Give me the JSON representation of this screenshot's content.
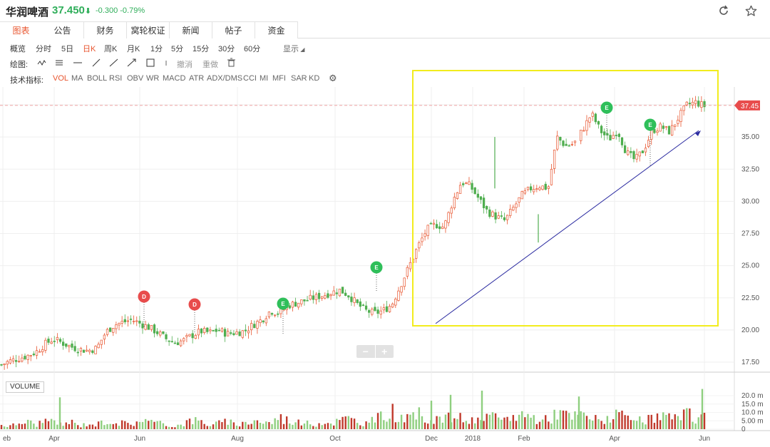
{
  "header": {
    "name": "华润啤酒",
    "price": "37.450",
    "price_arrow": "⬇",
    "change": "-0.300 -0.79%",
    "refresh_icon": "refresh-icon",
    "star_icon": "star-icon"
  },
  "tabs": [
    {
      "label": "图表"
    },
    {
      "label": "公告"
    },
    {
      "label": "财务"
    },
    {
      "label": "窝轮权证"
    },
    {
      "label": "新闻"
    },
    {
      "label": "帖子"
    },
    {
      "label": "资金"
    }
  ],
  "period_bar": {
    "label": "概览",
    "items": [
      "分时",
      "5日",
      "日K",
      "周K",
      "月K",
      "1分",
      "5分",
      "15分",
      "30分",
      "60分"
    ],
    "active": "日K",
    "display": "显示"
  },
  "draw_bar": {
    "label": "绘图:",
    "undo": "撤消",
    "redo": "重做"
  },
  "indicator_bar": {
    "label": "技术指标:",
    "items": [
      "VOL",
      "MA",
      "BOLL",
      "RSI",
      "OBV",
      "WR",
      "MACD",
      "ATR",
      "ADX/DMS",
      "CCI",
      "MI",
      "MFI",
      "SAR",
      "KD"
    ],
    "active": "VOL"
  },
  "volume_label": "VOLUME",
  "zoom": {
    "minus": "−",
    "plus": "+"
  },
  "colors": {
    "up": "#e8552f",
    "down": "#4fae4f",
    "event_e": "#2fbf5a",
    "event_d": "#e84c4c",
    "box": "#f2ec1e",
    "trend": "#2a2aa0"
  },
  "chart_data": {
    "type": "candlestick",
    "current_price": "37.45",
    "price_ticks": [
      "37.50",
      "35.00",
      "32.50",
      "30.00",
      "27.50",
      "25.00",
      "22.50",
      "20.00",
      "17.50"
    ],
    "volume_ticks": [
      "20.0 m",
      "15.0 m",
      "10.0 m",
      "5.00 m",
      "0"
    ],
    "x_ticks": [
      "eb",
      "Apr",
      "Jun",
      "Aug",
      "Oct",
      "Dec",
      "2018",
      "Feb",
      "Apr",
      "Jun"
    ],
    "events": [
      {
        "type": "D",
        "date_label": "Jun",
        "price": 20.5
      },
      {
        "type": "D",
        "date_label": "Jul",
        "price": 19.9
      },
      {
        "type": "E",
        "date_label": "Aug",
        "price": 19.9
      },
      {
        "type": "E",
        "date_label": "Nov",
        "price": 22.6
      },
      {
        "type": "E",
        "date_label": "Mar",
        "price": 34.8
      },
      {
        "type": "E",
        "date_label": "Apr",
        "price": 33.2
      }
    ],
    "trendline": {
      "from_price": 20.5,
      "to_price": 35.5
    },
    "price_path": [
      17.3,
      17.6,
      17.8,
      18.0,
      18.3,
      18.9,
      19.3,
      19.0,
      18.7,
      18.5,
      18.4,
      18.6,
      19.8,
      20.4,
      20.6,
      20.8,
      20.5,
      20.2,
      19.8,
      19.3,
      19.0,
      19.2,
      19.6,
      19.9,
      19.8,
      20.0,
      19.7,
      19.8,
      19.9,
      20.4,
      20.8,
      21.5,
      21.3,
      21.9,
      22.1,
      22.3,
      22.5,
      22.7,
      22.9,
      23.1,
      22.7,
      22.0,
      21.5,
      21.3,
      21.5,
      22.0,
      23.5,
      25.0,
      26.5,
      27.8,
      28.2,
      28.0,
      30.0,
      31.5,
      31.2,
      30.2,
      29.2,
      28.8,
      28.5,
      29.5,
      30.5,
      31.0,
      31.2,
      31.0,
      35.0,
      34.3,
      34.5,
      35.6,
      36.8,
      35.5,
      34.8,
      35.5,
      33.8,
      33.2,
      34.0,
      35.5,
      35.8,
      35.4,
      36.5,
      37.5,
      37.7,
      37.4
    ],
    "volume_path": [
      3,
      2,
      4,
      5,
      3,
      6,
      4,
      3,
      5,
      2,
      4,
      3,
      6,
      5,
      4,
      3,
      7,
      5,
      4,
      3,
      2,
      4,
      6,
      5,
      3,
      4,
      5,
      3,
      4,
      6,
      5,
      4,
      8,
      6,
      5,
      4,
      3,
      5,
      4,
      6,
      7,
      5,
      4,
      6,
      9,
      12,
      8,
      6,
      10,
      7,
      8,
      6,
      9,
      7,
      6,
      5,
      8,
      7,
      6,
      9,
      10,
      8,
      7,
      6,
      12,
      9,
      8,
      10,
      7,
      6,
      8,
      9,
      7,
      6,
      5,
      7,
      9,
      8,
      6,
      10,
      7,
      8
    ]
  }
}
